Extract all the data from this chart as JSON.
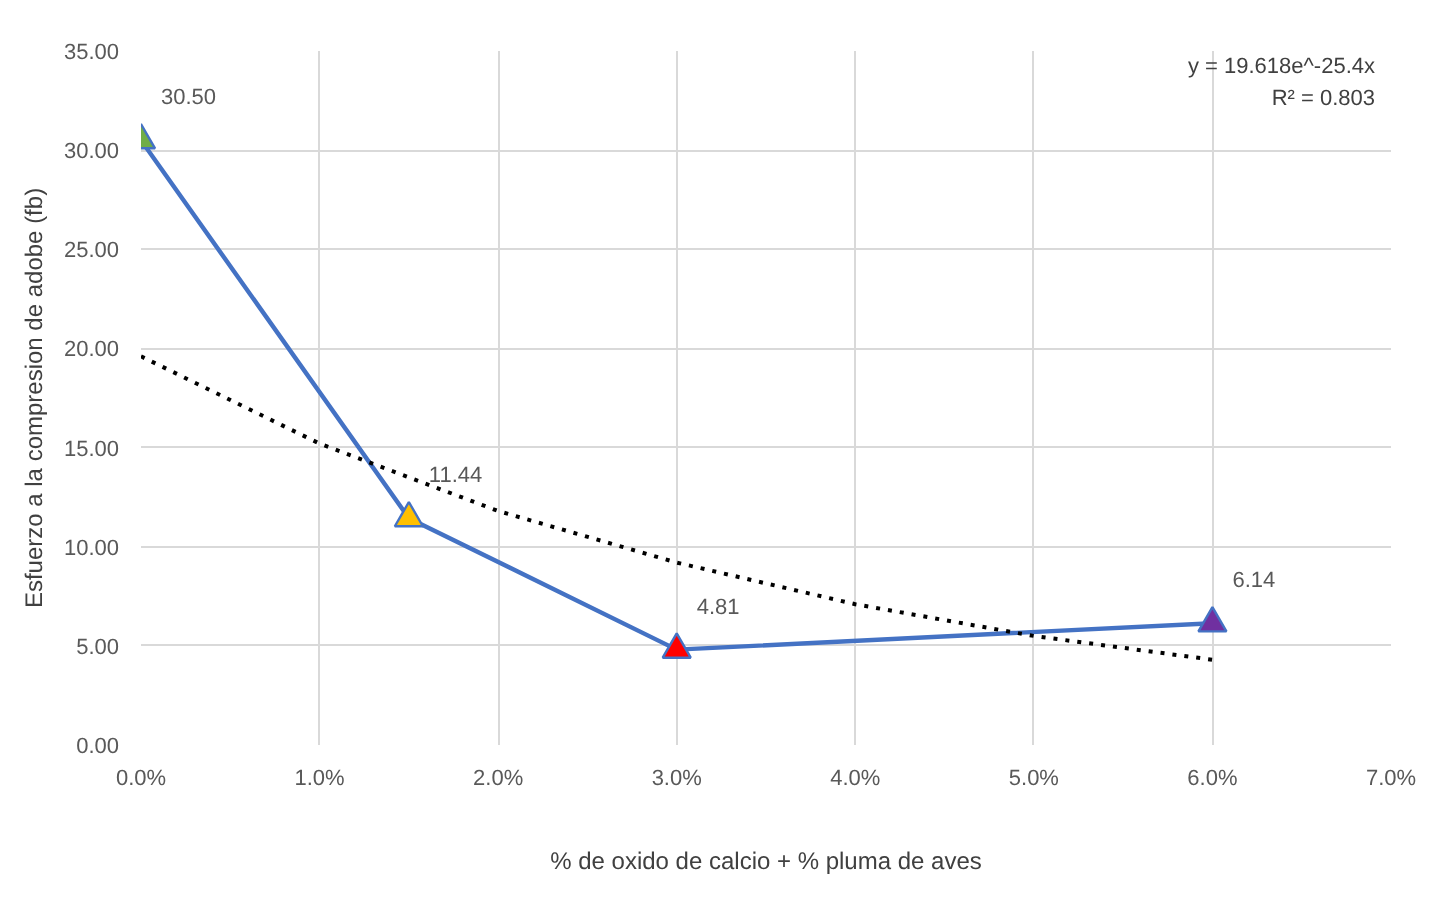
{
  "chart_data": {
    "type": "line",
    "xlabel": "% de oxido de calcio + % pluma de aves",
    "ylabel": "Esfuerzo a la compresion de adobe (fb)",
    "x": [
      0,
      0.015,
      0.03,
      0.06
    ],
    "series": [
      {
        "color": "#4472c4",
        "marker": "triangle",
        "colors": [
          "#70ad47",
          "#ffc000",
          "#ff0000",
          "#7030a0"
        ],
        "values": [
          30.5,
          11.44,
          4.81,
          6.14
        ],
        "value_labels": [
          "30.50",
          "11.44",
          "4.81",
          "6.14"
        ]
      },
      {
        "color": "#000000",
        "line_style": "dotted",
        "marker": "none",
        "x": [
          0,
          0.01,
          0.02,
          0.03,
          0.04,
          0.05,
          0.06
        ],
        "values": [
          19.6,
          15.2,
          11.8,
          9.2,
          7.1,
          5.5,
          4.3
        ]
      }
    ],
    "annotations": [
      "y = 19.618e^-25.4x",
      "R² = 0.803"
    ],
    "xlim": [
      0,
      0.07
    ],
    "ylim": [
      0,
      35
    ],
    "xticks": [
      {
        "value": 0,
        "label": "0.0%"
      },
      {
        "value": 0.01,
        "label": "1.0%"
      },
      {
        "value": 0.02,
        "label": "2.0%"
      },
      {
        "value": 0.03,
        "label": "3.0%"
      },
      {
        "value": 0.04,
        "label": "4.0%"
      },
      {
        "value": 0.05,
        "label": "5.0%"
      },
      {
        "value": 0.06,
        "label": "6.0%"
      },
      {
        "value": 0.07,
        "label": "7.0%"
      }
    ],
    "yticks": [
      {
        "value": 0,
        "label": "0.00"
      },
      {
        "value": 5,
        "label": "5.00"
      },
      {
        "value": 10,
        "label": "10.00"
      },
      {
        "value": 15,
        "label": "15.00"
      },
      {
        "value": 20,
        "label": "20.00"
      },
      {
        "value": 25,
        "label": "25.00"
      },
      {
        "value": 30,
        "label": "30.00"
      },
      {
        "value": 35,
        "label": "35.00"
      }
    ],
    "grid": true
  }
}
